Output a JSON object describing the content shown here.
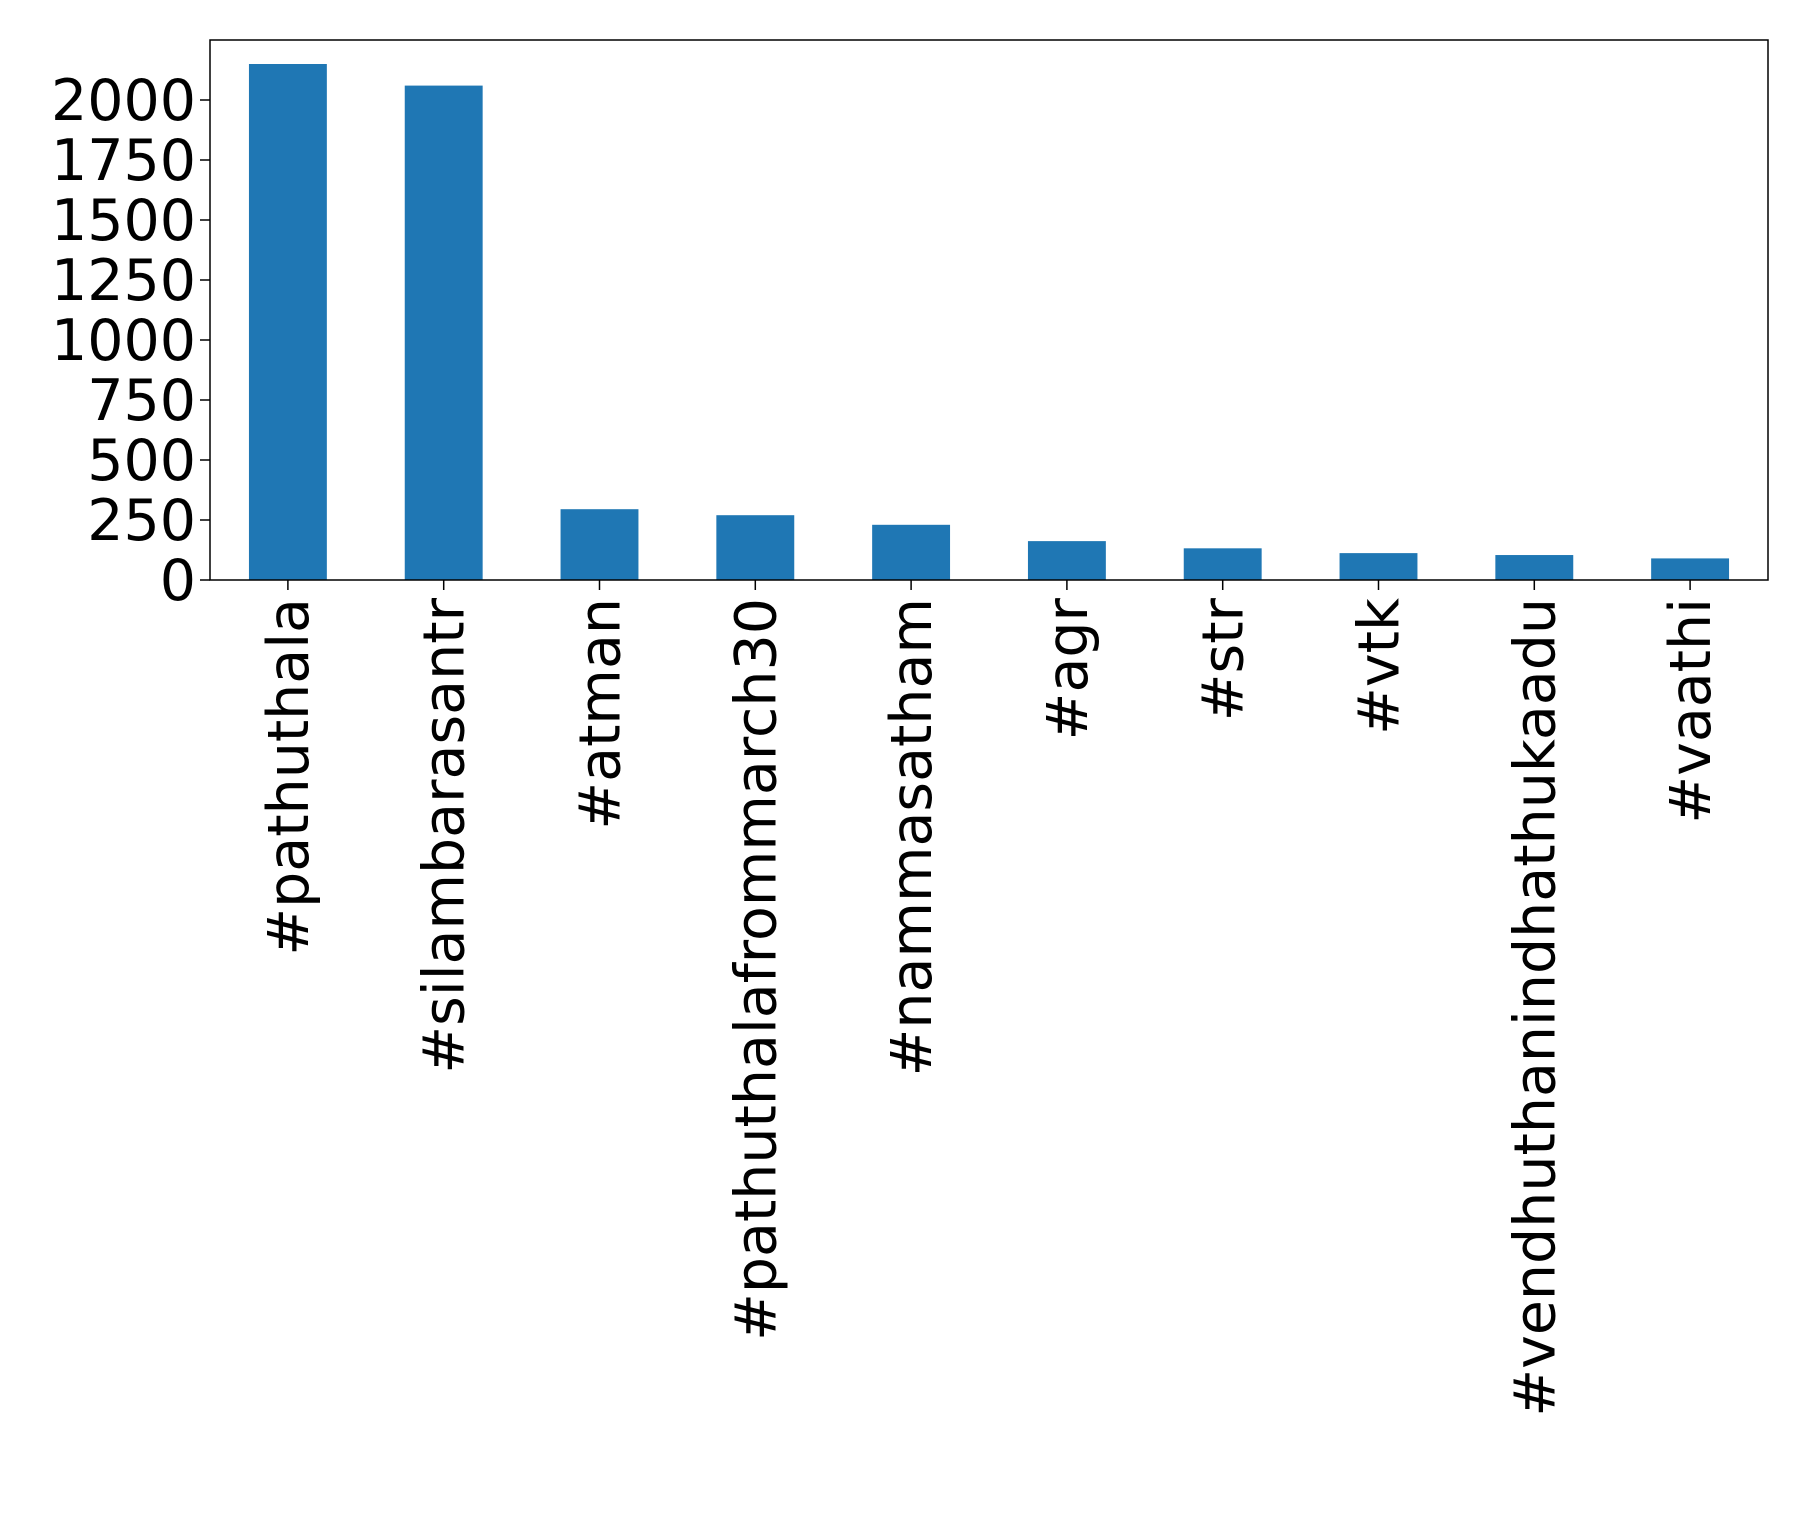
{
  "colors": {
    "bar": "#1f77b4",
    "axes": "#000000",
    "background": "#ffffff"
  },
  "chart_data": {
    "type": "bar",
    "categories": [
      "#pathuthala",
      "#silambarasantr",
      "#atman",
      "#pathuthalafrommarch30",
      "#nammasatham",
      "#agr",
      "#str",
      "#vtk",
      "#vendhuthanindhathukaadu",
      "#vaathi"
    ],
    "values": [
      2150,
      2060,
      295,
      270,
      230,
      162,
      132,
      112,
      104,
      90
    ],
    "ylim": [
      0,
      2250
    ],
    "yticks": [
      0,
      250,
      500,
      750,
      1000,
      1250,
      1500,
      1750,
      2000
    ],
    "ytick_labels": [
      "0",
      "250",
      "500",
      "750",
      "1000",
      "1250",
      "1500",
      "1750",
      "2000"
    ],
    "title": "",
    "xlabel": "",
    "ylabel": "",
    "grid": false,
    "legend": "none"
  }
}
